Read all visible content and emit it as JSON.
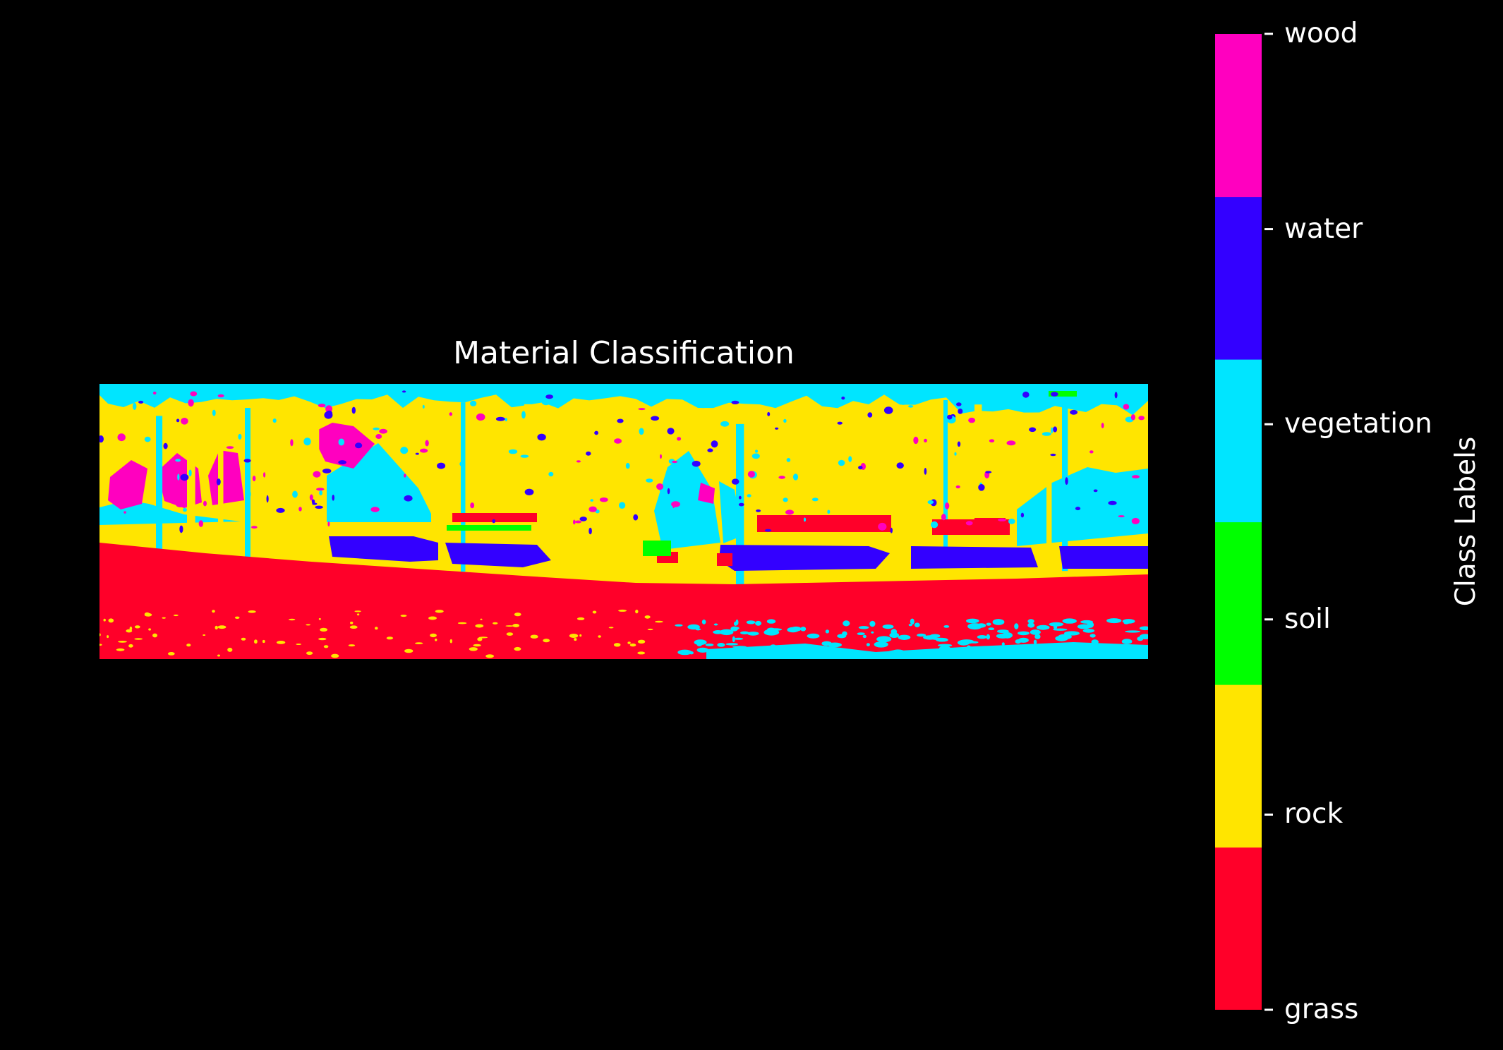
{
  "chart_data": {
    "type": "heatmap",
    "title": "Material Classification",
    "colorbar": {
      "label": "Class Labels",
      "classes": [
        {
          "name": "grass",
          "color": "#ff0029"
        },
        {
          "name": "rock",
          "color": "#ffe500"
        },
        {
          "name": "soil",
          "color": "#00ff00"
        },
        {
          "name": "vegetation",
          "color": "#00e5ff"
        },
        {
          "name": "water",
          "color": "#3300ff"
        },
        {
          "name": "wood",
          "color": "#ff00bf"
        }
      ]
    },
    "axes_visible": false,
    "background": "#000000"
  }
}
